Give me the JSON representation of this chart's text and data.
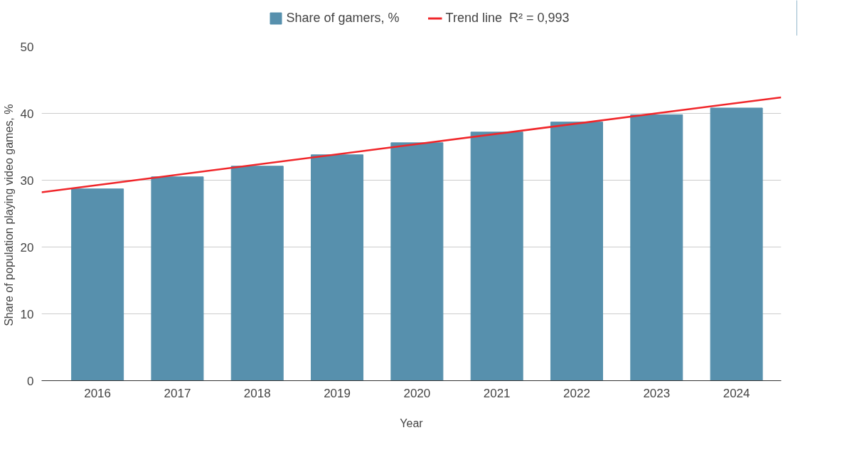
{
  "chart_data": {
    "type": "bar",
    "xlabel": "Year",
    "ylabel": "Share of  population playing video games, %",
    "x": [
      2016,
      2017,
      2018,
      2019,
      2020,
      2021,
      2022,
      2023,
      2024
    ],
    "xlim": [
      2015.3,
      2024.56
    ],
    "xticks": [
      2016,
      2017,
      2018,
      2019,
      2020,
      2021,
      2022,
      2023,
      2024
    ],
    "ylim": [
      0,
      50
    ],
    "yticks": [
      0,
      10,
      20,
      30,
      40,
      50
    ],
    "grid": "y",
    "legend": "top",
    "series": [
      {
        "name": "Share of gamers, %",
        "color": "#5790ad",
        "values": [
          28.7,
          30.5,
          32.1,
          33.8,
          35.6,
          37.2,
          38.7,
          39.8,
          40.8
        ]
      },
      {
        "name": "Trend line  R² = 0,993",
        "type": "line",
        "color": "#f0262a",
        "x": [
          2015.3,
          2024.56
        ],
        "values": [
          28.2,
          42.4
        ]
      }
    ]
  }
}
